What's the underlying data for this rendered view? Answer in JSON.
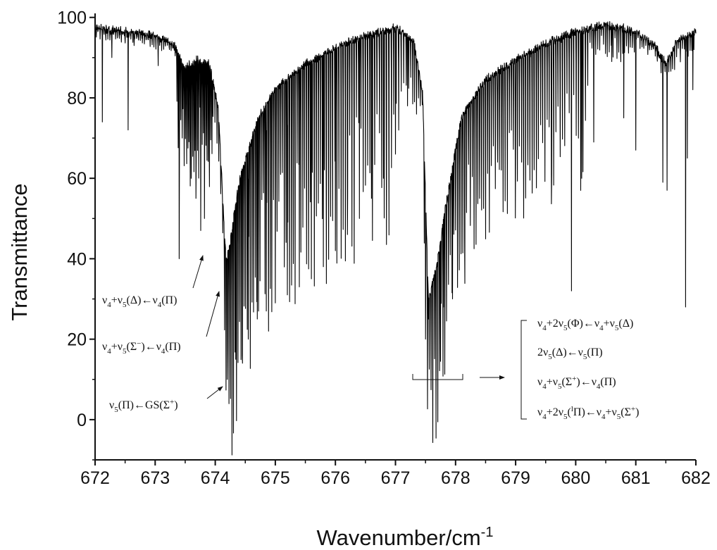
{
  "chart_data": {
    "type": "line",
    "title": "",
    "xlabel": "Wavenumber/cm",
    "xlabel_sup": "-1",
    "ylabel": "Transmittance",
    "xlim": [
      672,
      682
    ],
    "ylim": [
      -10,
      101
    ],
    "x_ticks": [
      672,
      673,
      674,
      675,
      676,
      677,
      678,
      679,
      680,
      681,
      682
    ],
    "y_ticks": [
      0,
      20,
      40,
      60,
      80,
      100
    ],
    "grid": false,
    "legend": "none",
    "color": "#000000",
    "series": [
      {
        "baseline": [
          [
            672.0,
            98
          ],
          [
            672.5,
            97
          ],
          [
            673.0,
            96
          ],
          [
            673.3,
            94
          ],
          [
            673.5,
            88
          ],
          [
            673.7,
            90
          ],
          [
            673.9,
            89
          ],
          [
            674.05,
            78
          ],
          [
            674.18,
            40
          ],
          [
            674.25,
            45
          ],
          [
            674.4,
            60
          ],
          [
            674.7,
            75
          ],
          [
            675.0,
            83
          ],
          [
            675.5,
            89
          ],
          [
            676.0,
            93
          ],
          [
            676.5,
            96
          ],
          [
            677.0,
            98
          ],
          [
            677.3,
            95
          ],
          [
            677.45,
            82
          ],
          [
            677.55,
            30
          ],
          [
            677.7,
            40
          ],
          [
            677.85,
            55
          ],
          [
            678.1,
            76
          ],
          [
            678.5,
            85
          ],
          [
            679.0,
            90
          ],
          [
            679.5,
            94
          ],
          [
            680.0,
            97
          ],
          [
            680.5,
            99
          ],
          [
            681.0,
            97
          ],
          [
            681.3,
            94
          ],
          [
            681.5,
            89
          ],
          [
            681.7,
            95
          ],
          [
            682.0,
            97
          ]
        ],
        "absorption_lines": [
          [
            672.12,
            74
          ],
          [
            672.28,
            90
          ],
          [
            672.55,
            72
          ],
          [
            672.65,
            93
          ],
          [
            673.05,
            88
          ],
          [
            673.4,
            40
          ],
          [
            673.45,
            70
          ],
          [
            673.52,
            75
          ],
          [
            673.6,
            60
          ],
          [
            673.68,
            55
          ],
          [
            673.76,
            47
          ],
          [
            673.82,
            50
          ],
          [
            673.9,
            65
          ],
          [
            674.2,
            10
          ],
          [
            674.23,
            13
          ],
          [
            674.28,
            12
          ],
          [
            674.34,
            15
          ],
          [
            674.45,
            16
          ],
          [
            674.55,
            20
          ],
          [
            674.7,
            25
          ],
          [
            674.85,
            27
          ],
          [
            675.0,
            29
          ],
          [
            675.2,
            31
          ],
          [
            675.4,
            33
          ],
          [
            675.6,
            35
          ],
          [
            675.8,
            38
          ],
          [
            676.0,
            42
          ],
          [
            676.2,
            46
          ],
          [
            676.4,
            50
          ],
          [
            676.6,
            55
          ],
          [
            676.8,
            60
          ],
          [
            677.0,
            66
          ],
          [
            677.2,
            78
          ],
          [
            677.5,
            20
          ],
          [
            677.55,
            25
          ],
          [
            677.62,
            32
          ],
          [
            677.75,
            14.5
          ],
          [
            677.8,
            28
          ],
          [
            677.95,
            30
          ],
          [
            678.15,
            45
          ],
          [
            678.4,
            55
          ],
          [
            678.7,
            64
          ],
          [
            679.0,
            72
          ],
          [
            679.2,
            70
          ],
          [
            679.6,
            61
          ],
          [
            679.93,
            32
          ],
          [
            680.1,
            60
          ],
          [
            680.3,
            69
          ],
          [
            680.6,
            89
          ],
          [
            680.8,
            75
          ],
          [
            681.0,
            67
          ],
          [
            681.45,
            59
          ],
          [
            681.52,
            57
          ],
          [
            681.83,
            28
          ],
          [
            681.86,
            65
          ],
          [
            681.95,
            82
          ]
        ]
      }
    ],
    "annotations": [
      {
        "id": "delta",
        "parts": [
          [
            "ν",
            ""
          ],
          [
            "4",
            "sub"
          ],
          [
            "+ν",
            ""
          ],
          [
            "5",
            "sub"
          ],
          [
            "(Δ)←ν",
            ""
          ],
          [
            "4",
            "sub"
          ],
          [
            "(Π)",
            ""
          ]
        ]
      },
      {
        "id": "sigma-minus",
        "parts": [
          [
            "ν",
            ""
          ],
          [
            "4",
            "sub"
          ],
          [
            "+ν",
            ""
          ],
          [
            "5",
            "sub"
          ],
          [
            "(Σ",
            ""
          ],
          [
            "−",
            "sup"
          ],
          [
            ")←ν",
            ""
          ],
          [
            "4",
            "sub"
          ],
          [
            "(Π)",
            ""
          ]
        ]
      },
      {
        "id": "gs",
        "parts": [
          [
            "ν",
            ""
          ],
          [
            "5",
            "sub"
          ],
          [
            "(Π)←GS(Σ",
            ""
          ],
          [
            "+",
            "sup"
          ],
          [
            ")",
            ""
          ]
        ]
      },
      {
        "id": "phi",
        "parts": [
          [
            "ν",
            ""
          ],
          [
            "4",
            "sub"
          ],
          [
            "+2ν",
            ""
          ],
          [
            "5",
            "sub"
          ],
          [
            "(Φ)←ν",
            ""
          ],
          [
            "4",
            "sub"
          ],
          [
            "+ν",
            ""
          ],
          [
            "5",
            "sub"
          ],
          [
            "(Δ)",
            ""
          ]
        ]
      },
      {
        "id": "2nu5",
        "parts": [
          [
            "2ν",
            ""
          ],
          [
            "5",
            "sub"
          ],
          [
            "(Δ)←ν",
            ""
          ],
          [
            "5",
            "sub"
          ],
          [
            "(Π)",
            ""
          ]
        ]
      },
      {
        "id": "sigma-plus",
        "parts": [
          [
            "ν",
            ""
          ],
          [
            "4",
            "sub"
          ],
          [
            "+ν",
            ""
          ],
          [
            "5",
            "sub"
          ],
          [
            "(Σ",
            ""
          ],
          [
            "+",
            "sup"
          ],
          [
            ")←ν",
            ""
          ],
          [
            "4",
            "sub"
          ],
          [
            "(Π)",
            ""
          ]
        ]
      },
      {
        "id": "lpi",
        "parts": [
          [
            "ν",
            ""
          ],
          [
            "4",
            "sub"
          ],
          [
            "+2ν",
            ""
          ],
          [
            "5",
            "sub"
          ],
          [
            "(",
            ""
          ],
          [
            "l",
            "sup"
          ],
          [
            "Π)←ν",
            ""
          ],
          [
            "4",
            "sub"
          ],
          [
            "+ν",
            ""
          ],
          [
            "5",
            "sub"
          ],
          [
            "(Σ",
            ""
          ],
          [
            "+",
            "sup"
          ],
          [
            ")",
            ""
          ]
        ]
      }
    ]
  }
}
